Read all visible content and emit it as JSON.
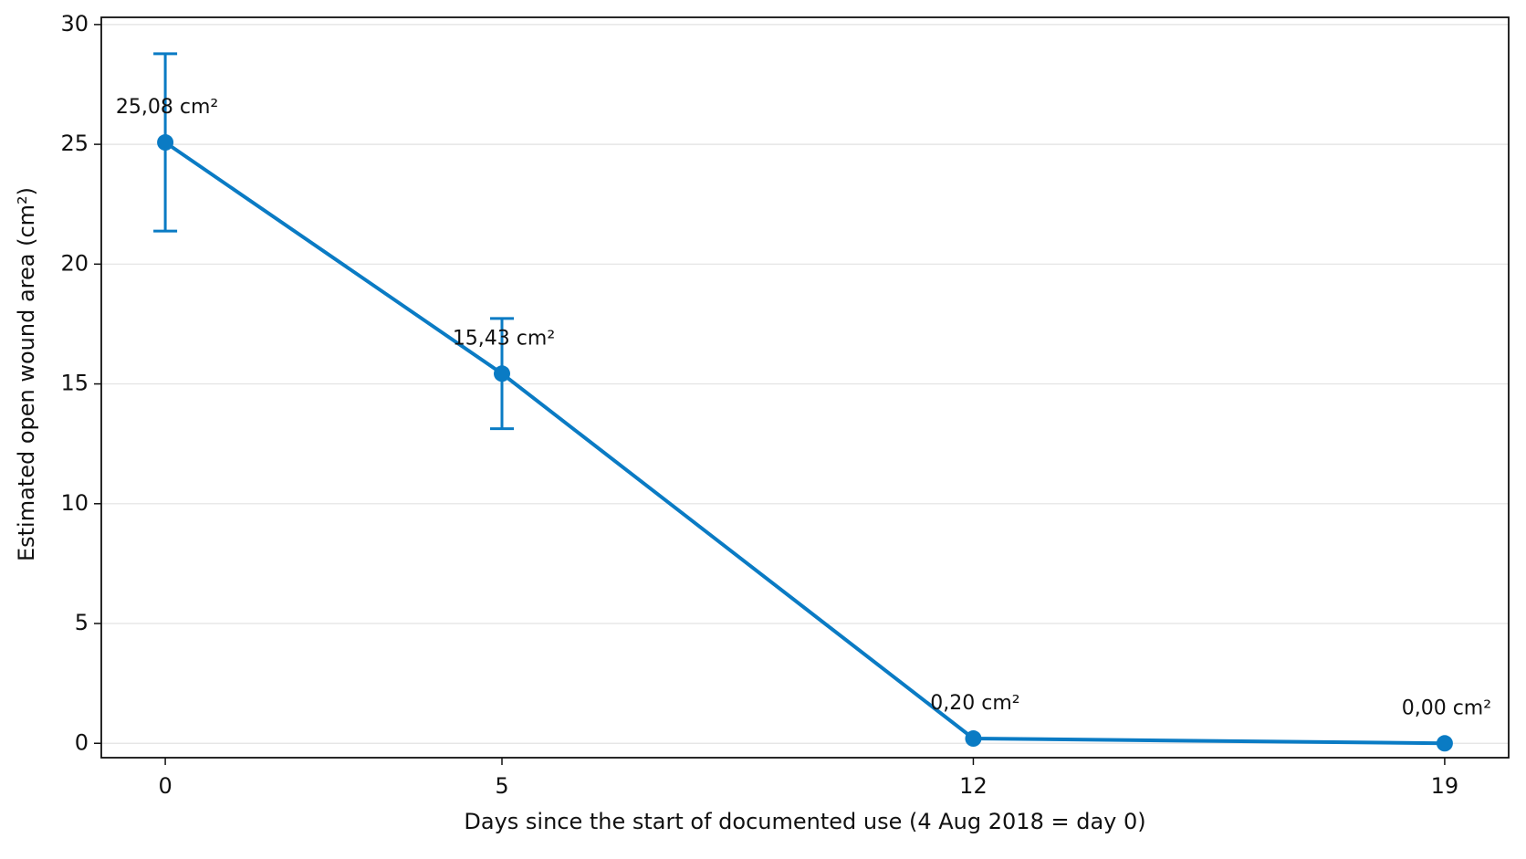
{
  "chart_data": {
    "type": "line",
    "x_label": "Days since the start of documented use (4 Aug 2018 = day 0)",
    "y_label": "Estimated open wound area (cm²)",
    "x": [
      0,
      5,
      12,
      19
    ],
    "series": [
      {
        "color": "#0a7bc4",
        "values": [
          25.08,
          15.43,
          0.2,
          0.0
        ],
        "value_labels": [
          "25,08 cm²",
          "15,43 cm²",
          "0,20 cm²",
          "0,00 cm²"
        ],
        "errors": [
          3.7,
          2.3,
          null,
          null
        ]
      }
    ],
    "xlim": [
      -0.95,
      19.95
    ],
    "xticks": [
      0,
      5,
      12,
      19
    ],
    "ylim": [
      -0.6,
      30.3
    ],
    "yticks": [
      0,
      5,
      10,
      15,
      20,
      25,
      30
    ],
    "grid": true
  }
}
